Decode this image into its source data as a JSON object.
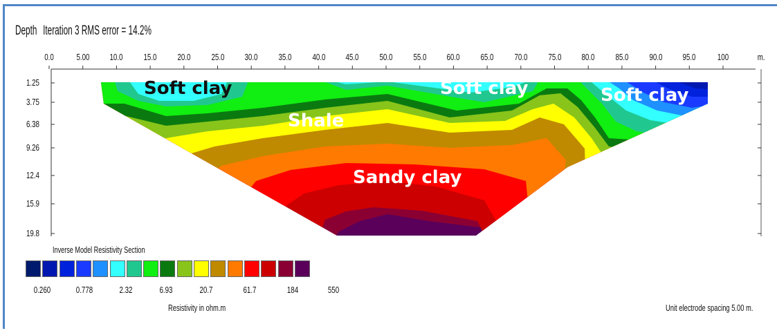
{
  "header": {
    "depth_label": "Depth",
    "iteration_text": "Iteration 3 RMS error = 14.2%"
  },
  "x_axis": {
    "ticks": [
      "0.0",
      "5.00",
      "10.0",
      "15.0",
      "20.0",
      "25.0",
      "30.0",
      "35.0",
      "40.0",
      "45.0",
      "50.0",
      "55.0",
      "60.0",
      "65.0",
      "70.0",
      "75.0",
      "80.0",
      "85.0",
      "90.0",
      "95.0",
      "100"
    ],
    "unit": "m."
  },
  "y_axis": {
    "ticks": [
      "1.25",
      "3.75",
      "6.38",
      "9.26",
      "12.4",
      "15.9",
      "19.8"
    ]
  },
  "annotations": {
    "soft_clay_left": "Soft clay",
    "soft_clay_center": "Soft clay",
    "soft_clay_right": "Soft clay",
    "shale": "Shale",
    "sandy_clay": "Sandy clay"
  },
  "legend": {
    "title": "Inverse Model Resistivity Section",
    "colors": [
      "#001a6e",
      "#0018b0",
      "#0022dd",
      "#1a3bff",
      "#1e90ff",
      "#33ffff",
      "#20c890",
      "#11ee11",
      "#0a7a10",
      "#88c41a",
      "#ffff00",
      "#c08a00",
      "#ff7a00",
      "#ff0000",
      "#cc0000",
      "#8b0033",
      "#5a005a"
    ],
    "values": [
      "0.260",
      "0.778",
      "2.32",
      "6.93",
      "20.7",
      "61.7",
      "184",
      "550"
    ],
    "unit_label": "Resistivity in ohm.m"
  },
  "footer": {
    "spacing": "Unit electrode spacing 5.00 m."
  }
}
